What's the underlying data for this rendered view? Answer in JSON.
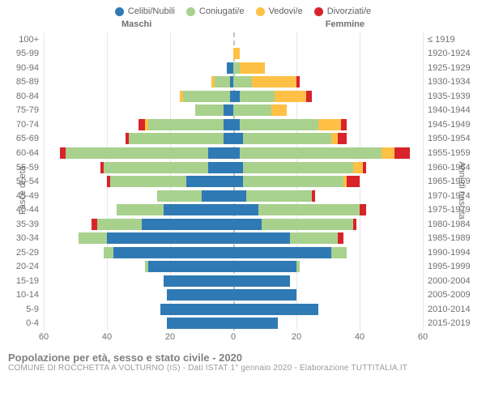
{
  "chart": {
    "type": "population-pyramid-stacked",
    "x_max": 60,
    "x_ticks": [
      60,
      40,
      20,
      0,
      20,
      40,
      60
    ],
    "background_color": "#ffffff",
    "grid_color": "#e6e6e6",
    "center_line_color": "#c2c2c2",
    "text_color": "#707070",
    "font_size": 11,
    "y_left_title": "Fasce di età",
    "y_right_title": "Anni di nascita",
    "side_title_m": "Maschi",
    "side_title_f": "Femmine",
    "legend": [
      {
        "label": "Celibi/Nubili",
        "color": "#2f7ab5"
      },
      {
        "label": "Coniugati/e",
        "color": "#a8d18d"
      },
      {
        "label": "Vedovi/e",
        "color": "#ffc046"
      },
      {
        "label": "Divorziati/e",
        "color": "#d8232a"
      }
    ],
    "rows": [
      {
        "age": "100+",
        "birth": "≤ 1919",
        "m": [
          0,
          0,
          0,
          0
        ],
        "f": [
          0,
          0,
          0,
          0
        ]
      },
      {
        "age": "95-99",
        "birth": "1920-1924",
        "m": [
          0,
          0,
          0,
          0
        ],
        "f": [
          0,
          0,
          2,
          0
        ]
      },
      {
        "age": "90-94",
        "birth": "1925-1929",
        "m": [
          2,
          0,
          0,
          0
        ],
        "f": [
          0,
          2,
          8,
          0
        ]
      },
      {
        "age": "85-89",
        "birth": "1930-1934",
        "m": [
          1,
          5,
          1,
          0
        ],
        "f": [
          0,
          6,
          14,
          1
        ]
      },
      {
        "age": "80-84",
        "birth": "1935-1939",
        "m": [
          1,
          15,
          1,
          0
        ],
        "f": [
          2,
          11,
          10,
          2
        ]
      },
      {
        "age": "75-79",
        "birth": "1940-1944",
        "m": [
          3,
          9,
          0,
          0
        ],
        "f": [
          0,
          12,
          5,
          0
        ]
      },
      {
        "age": "70-74",
        "birth": "1945-1949",
        "m": [
          3,
          24,
          1,
          2
        ],
        "f": [
          2,
          25,
          7,
          2
        ]
      },
      {
        "age": "65-69",
        "birth": "1950-1954",
        "m": [
          3,
          30,
          0,
          1
        ],
        "f": [
          3,
          28,
          2,
          3
        ]
      },
      {
        "age": "60-64",
        "birth": "1955-1959",
        "m": [
          8,
          45,
          0,
          2
        ],
        "f": [
          2,
          45,
          4,
          5
        ]
      },
      {
        "age": "55-59",
        "birth": "1960-1964",
        "m": [
          8,
          33,
          0,
          1
        ],
        "f": [
          3,
          35,
          3,
          1
        ]
      },
      {
        "age": "50-54",
        "birth": "1965-1969",
        "m": [
          15,
          24,
          0,
          1
        ],
        "f": [
          3,
          32,
          1,
          4
        ]
      },
      {
        "age": "45-49",
        "birth": "1970-1974",
        "m": [
          10,
          14,
          0,
          0
        ],
        "f": [
          4,
          21,
          0,
          1
        ]
      },
      {
        "age": "40-44",
        "birth": "1975-1979",
        "m": [
          22,
          15,
          0,
          0
        ],
        "f": [
          8,
          32,
          0,
          2
        ]
      },
      {
        "age": "35-39",
        "birth": "1980-1984",
        "m": [
          29,
          14,
          0,
          2
        ],
        "f": [
          9,
          29,
          0,
          1
        ]
      },
      {
        "age": "30-34",
        "birth": "1985-1989",
        "m": [
          40,
          9,
          0,
          0
        ],
        "f": [
          18,
          15,
          0,
          2
        ]
      },
      {
        "age": "25-29",
        "birth": "1990-1994",
        "m": [
          38,
          3,
          0,
          0
        ],
        "f": [
          31,
          5,
          0,
          0
        ]
      },
      {
        "age": "20-24",
        "birth": "1995-1999",
        "m": [
          27,
          1,
          0,
          0
        ],
        "f": [
          20,
          1,
          0,
          0
        ]
      },
      {
        "age": "15-19",
        "birth": "2000-2004",
        "m": [
          22,
          0,
          0,
          0
        ],
        "f": [
          18,
          0,
          0,
          0
        ]
      },
      {
        "age": "10-14",
        "birth": "2005-2009",
        "m": [
          21,
          0,
          0,
          0
        ],
        "f": [
          20,
          0,
          0,
          0
        ]
      },
      {
        "age": "5-9",
        "birth": "2010-2014",
        "m": [
          23,
          0,
          0,
          0
        ],
        "f": [
          27,
          0,
          0,
          0
        ]
      },
      {
        "age": "0-4",
        "birth": "2015-2019",
        "m": [
          21,
          0,
          0,
          0
        ],
        "f": [
          14,
          0,
          0,
          0
        ]
      }
    ]
  },
  "footer": {
    "title": "Popolazione per età, sesso e stato civile - 2020",
    "subtitle": "COMUNE DI ROCCHETTA A VOLTURNO (IS) - Dati ISTAT 1° gennaio 2020 - Elaborazione TUTTITALIA.IT"
  }
}
